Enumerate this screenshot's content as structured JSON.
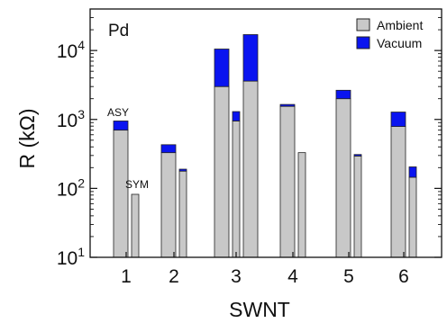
{
  "chart_data": {
    "type": "bar",
    "panel_label": "Pd",
    "xlabel": "SWNT",
    "ylabel": "R (kΩ)",
    "y_scale": "log",
    "ylim": [
      10,
      40000
    ],
    "y_ticks": [
      {
        "value": 10,
        "base": "10",
        "exp": "1"
      },
      {
        "value": 100,
        "base": "10",
        "exp": "2"
      },
      {
        "value": 1000,
        "base": "10",
        "exp": "3"
      },
      {
        "value": 10000,
        "base": "10",
        "exp": "4"
      }
    ],
    "categories": [
      "1",
      "2",
      "3",
      "4",
      "5",
      "6"
    ],
    "series_names": {
      "ambient": "Ambient",
      "vacuum": "Vacuum"
    },
    "colors": {
      "ambient": "#c8c8c8",
      "vacuum": "#0a14f0",
      "edge": "#222222"
    },
    "legend_position": "top-right",
    "bars": [
      {
        "category": "1",
        "config": "ASY",
        "ambient": 700,
        "vacuum": 950
      },
      {
        "category": "1",
        "config": "SYM",
        "ambient": 82,
        "vacuum": 82
      },
      {
        "category": "2",
        "config": "ASY",
        "ambient": 330,
        "vacuum": 430
      },
      {
        "category": "2",
        "config": "SYM",
        "ambient": 178,
        "vacuum": 190
      },
      {
        "category": "3",
        "config": "ASY",
        "ambient": 3000,
        "vacuum": 10500
      },
      {
        "category": "3",
        "config": "SYM",
        "ambient": 950,
        "vacuum": 1300
      },
      {
        "category": "3",
        "config": "ASY",
        "ambient": 3600,
        "vacuum": 17000
      },
      {
        "category": "4",
        "config": "ASY",
        "ambient": 1550,
        "vacuum": 1650
      },
      {
        "category": "4",
        "config": "SYM",
        "ambient": 330,
        "vacuum": 330
      },
      {
        "category": "5",
        "config": "ASY",
        "ambient": 2000,
        "vacuum": 2650
      },
      {
        "category": "5",
        "config": "SYM",
        "ambient": 295,
        "vacuum": 310
      },
      {
        "category": "6",
        "config": "ASY",
        "ambient": 790,
        "vacuum": 1280
      },
      {
        "category": "6",
        "config": "SYM",
        "ambient": 145,
        "vacuum": 205
      }
    ],
    "annotations": [
      "ASY",
      "SYM"
    ]
  }
}
